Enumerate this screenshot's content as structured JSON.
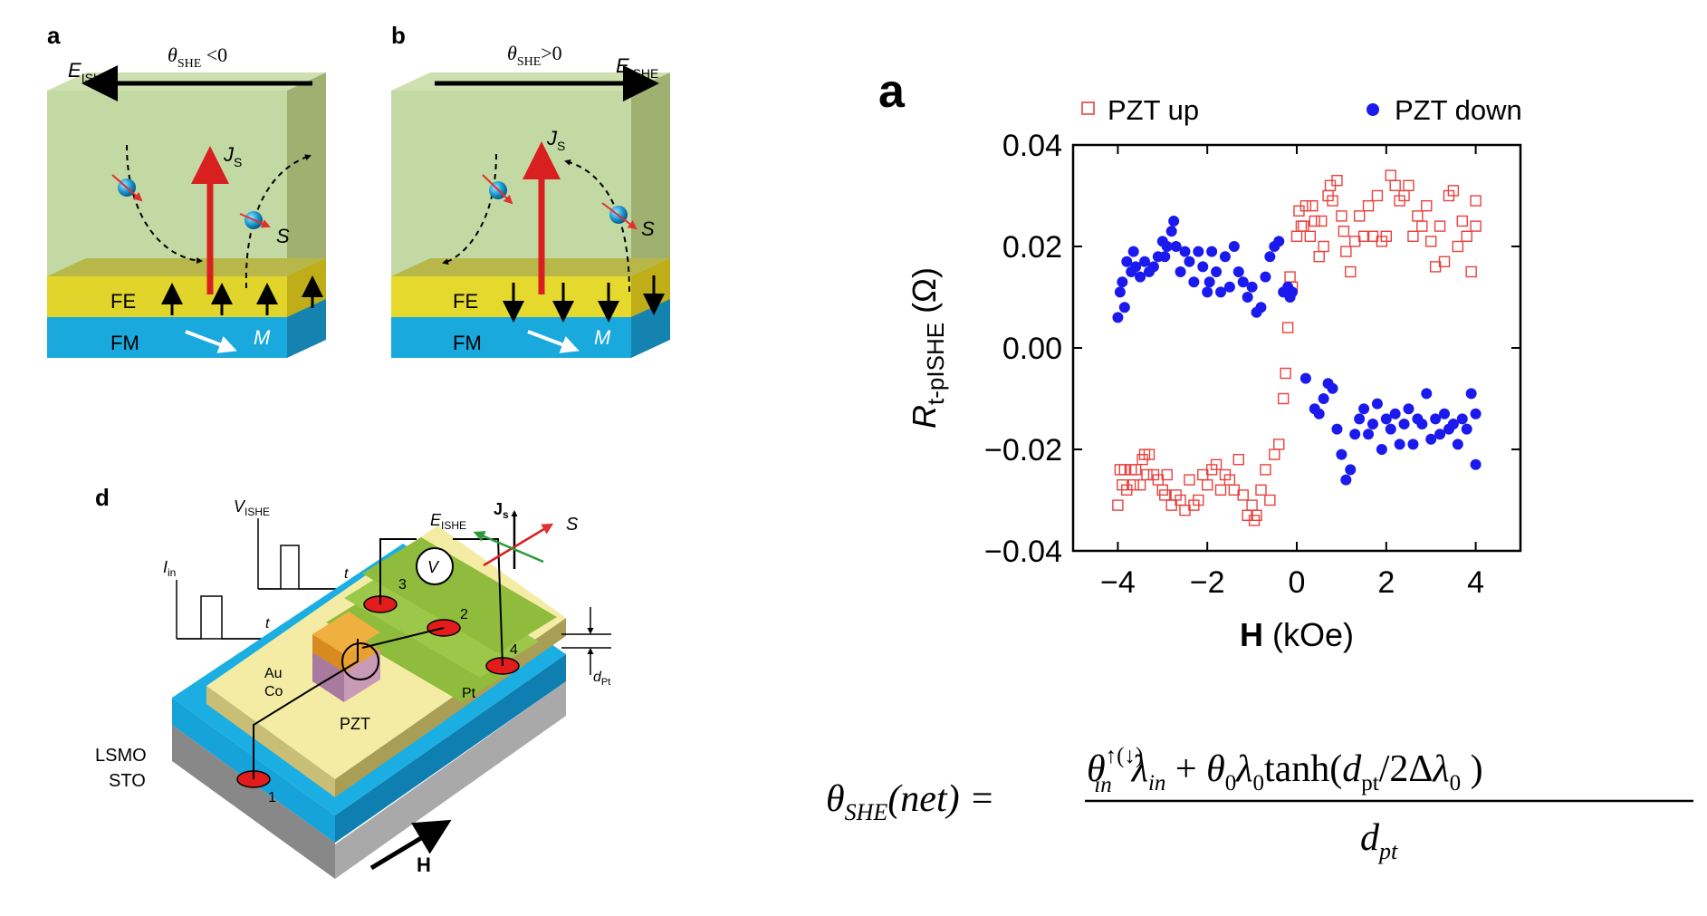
{
  "panels": {
    "a": {
      "label": "a",
      "theta": "θ",
      "theta_sub": "SHE",
      "theta_rel": " <0",
      "e_field": "E",
      "e_sub": "ISHE",
      "js": "J",
      "js_sub": "S",
      "s_label": "S",
      "fe": "FE",
      "fm": "FM",
      "m_label": "M"
    },
    "b": {
      "label": "b",
      "theta": "θ",
      "theta_sub": "SHE",
      "theta_rel": ">0",
      "e_field": "E",
      "e_sub": "ISHE",
      "js": "J",
      "js_sub": "S",
      "s_label": "S",
      "fe": "FE",
      "fm": "FM",
      "m_label": "M"
    },
    "d": {
      "label": "d",
      "v_ishe": "V",
      "v_ishe_sub": "ISHE",
      "i_in": "I",
      "i_in_sub": "in",
      "t1": "t",
      "t2": "t",
      "e_ishe": "E",
      "e_ishe_sub": "ISHE",
      "js": "J",
      "js_sub": "s",
      "s_label": "S",
      "voltmeter": "V",
      "contacts": [
        "1",
        "2",
        "3",
        "4"
      ],
      "au": "Au",
      "co": "Co",
      "pt": "Pt",
      "pzt": "PZT",
      "lsmo": "LSMO",
      "sto": "STO",
      "h_label": "H",
      "d_pt": "d",
      "d_pt_sub": "Pt"
    }
  },
  "chart_data": {
    "type": "scatter",
    "panel_label": "a",
    "xlabel_bold": "H",
    "xlabel_unit": " (kOe)",
    "ylabel_main": "R",
    "ylabel_sub": "t-pISHE",
    "ylabel_unit": " (Ω)",
    "xlim": [
      -5,
      5
    ],
    "ylim": [
      -0.04,
      0.04
    ],
    "x_ticks": [
      -4,
      -2,
      0,
      2,
      4
    ],
    "x_tick_labels": [
      "−4",
      "−2",
      "0",
      "2",
      "4"
    ],
    "y_ticks": [
      0.04,
      0.02,
      0.0,
      -0.02,
      -0.04
    ],
    "y_tick_labels": [
      "0.04",
      "0.02",
      "0.00",
      "−0.02",
      "−0.04"
    ],
    "legend": [
      {
        "name": "PZT up",
        "marker": "open-square",
        "color": "#e8413c"
      },
      {
        "name": "PZT down",
        "marker": "filled-circle",
        "color": "#1a1aee"
      }
    ],
    "series": [
      {
        "name": "PZT up",
        "points": [
          [
            -4.0,
            -0.031
          ],
          [
            -3.95,
            -0.024
          ],
          [
            -3.9,
            -0.027
          ],
          [
            -3.85,
            -0.024
          ],
          [
            -3.8,
            -0.028
          ],
          [
            -3.7,
            -0.024
          ],
          [
            -3.65,
            -0.027
          ],
          [
            -3.6,
            -0.024
          ],
          [
            -3.5,
            -0.027
          ],
          [
            -3.45,
            -0.022
          ],
          [
            -3.4,
            -0.021
          ],
          [
            -3.35,
            -0.025
          ],
          [
            -3.3,
            -0.021
          ],
          [
            -3.2,
            -0.025
          ],
          [
            -3.1,
            -0.026
          ],
          [
            -3.0,
            -0.028
          ],
          [
            -2.95,
            -0.029
          ],
          [
            -2.9,
            -0.025
          ],
          [
            -2.8,
            -0.031
          ],
          [
            -2.7,
            -0.029
          ],
          [
            -2.6,
            -0.03
          ],
          [
            -2.5,
            -0.032
          ],
          [
            -2.4,
            -0.026
          ],
          [
            -2.3,
            -0.031
          ],
          [
            -2.2,
            -0.03
          ],
          [
            -2.1,
            -0.025
          ],
          [
            -2.0,
            -0.027
          ],
          [
            -1.9,
            -0.024
          ],
          [
            -1.8,
            -0.023
          ],
          [
            -1.7,
            -0.028
          ],
          [
            -1.6,
            -0.025
          ],
          [
            -1.5,
            -0.026
          ],
          [
            -1.4,
            -0.028
          ],
          [
            -1.3,
            -0.022
          ],
          [
            -1.2,
            -0.029
          ],
          [
            -1.1,
            -0.033
          ],
          [
            -1.0,
            -0.031
          ],
          [
            -0.95,
            -0.034
          ],
          [
            -0.9,
            -0.033
          ],
          [
            -0.8,
            -0.028
          ],
          [
            -0.7,
            -0.024
          ],
          [
            -0.6,
            -0.03
          ],
          [
            -0.5,
            -0.021
          ],
          [
            -0.4,
            -0.019
          ],
          [
            -0.3,
            -0.01
          ],
          [
            -0.25,
            -0.005
          ],
          [
            -0.2,
            0.004
          ],
          [
            -0.15,
            0.014
          ],
          [
            -0.1,
            0.012
          ],
          [
            0.0,
            0.022
          ],
          [
            0.05,
            0.027
          ],
          [
            0.1,
            0.024
          ],
          [
            0.15,
            0.024
          ],
          [
            0.2,
            0.028
          ],
          [
            0.3,
            0.022
          ],
          [
            0.35,
            0.028
          ],
          [
            0.4,
            0.025
          ],
          [
            0.5,
            0.018
          ],
          [
            0.55,
            0.025
          ],
          [
            0.6,
            0.02
          ],
          [
            0.7,
            0.03
          ],
          [
            0.75,
            0.032
          ],
          [
            0.8,
            0.029
          ],
          [
            0.9,
            0.033
          ],
          [
            1.0,
            0.026
          ],
          [
            1.05,
            0.023
          ],
          [
            1.1,
            0.019
          ],
          [
            1.2,
            0.015
          ],
          [
            1.3,
            0.021
          ],
          [
            1.4,
            0.026
          ],
          [
            1.5,
            0.022
          ],
          [
            1.6,
            0.028
          ],
          [
            1.7,
            0.022
          ],
          [
            1.8,
            0.03
          ],
          [
            1.9,
            0.021
          ],
          [
            2.0,
            0.022
          ],
          [
            2.1,
            0.034
          ],
          [
            2.2,
            0.032
          ],
          [
            2.3,
            0.029
          ],
          [
            2.4,
            0.03
          ],
          [
            2.5,
            0.032
          ],
          [
            2.6,
            0.022
          ],
          [
            2.7,
            0.026
          ],
          [
            2.8,
            0.024
          ],
          [
            2.9,
            0.028
          ],
          [
            3.0,
            0.021
          ],
          [
            3.1,
            0.016
          ],
          [
            3.2,
            0.024
          ],
          [
            3.3,
            0.017
          ],
          [
            3.4,
            0.03
          ],
          [
            3.5,
            0.031
          ],
          [
            3.6,
            0.02
          ],
          [
            3.7,
            0.025
          ],
          [
            3.8,
            0.022
          ],
          [
            3.9,
            0.015
          ],
          [
            4.0,
            0.024
          ],
          [
            4.0,
            0.029
          ]
        ]
      },
      {
        "name": "PZT down",
        "points": [
          [
            -4.0,
            0.006
          ],
          [
            -3.95,
            0.011
          ],
          [
            -3.9,
            0.013
          ],
          [
            -3.85,
            0.008
          ],
          [
            -3.8,
            0.017
          ],
          [
            -3.7,
            0.015
          ],
          [
            -3.65,
            0.019
          ],
          [
            -3.6,
            0.016
          ],
          [
            -3.5,
            0.014
          ],
          [
            -3.4,
            0.017
          ],
          [
            -3.3,
            0.015
          ],
          [
            -3.2,
            0.016
          ],
          [
            -3.1,
            0.018
          ],
          [
            -3.0,
            0.021
          ],
          [
            -2.95,
            0.018
          ],
          [
            -2.9,
            0.02
          ],
          [
            -2.8,
            0.023
          ],
          [
            -2.75,
            0.025
          ],
          [
            -2.7,
            0.02
          ],
          [
            -2.6,
            0.015
          ],
          [
            -2.5,
            0.019
          ],
          [
            -2.4,
            0.017
          ],
          [
            -2.3,
            0.013
          ],
          [
            -2.2,
            0.019
          ],
          [
            -2.1,
            0.016
          ],
          [
            -2.0,
            0.011
          ],
          [
            -1.95,
            0.013
          ],
          [
            -1.9,
            0.019
          ],
          [
            -1.8,
            0.015
          ],
          [
            -1.7,
            0.011
          ],
          [
            -1.6,
            0.018
          ],
          [
            -1.5,
            0.012
          ],
          [
            -1.4,
            0.02
          ],
          [
            -1.3,
            0.015
          ],
          [
            -1.2,
            0.013
          ],
          [
            -1.1,
            0.01
          ],
          [
            -1.0,
            0.012
          ],
          [
            -0.9,
            0.007
          ],
          [
            -0.8,
            0.008
          ],
          [
            -0.7,
            0.014
          ],
          [
            -0.6,
            0.018
          ],
          [
            -0.5,
            0.02
          ],
          [
            -0.4,
            0.021
          ],
          [
            -0.3,
            0.011
          ],
          [
            -0.2,
            0.012
          ],
          [
            -0.15,
            0.01
          ],
          [
            -0.1,
            0.011
          ],
          [
            0.2,
            -0.006
          ],
          [
            0.4,
            -0.012
          ],
          [
            0.5,
            -0.013
          ],
          [
            0.6,
            -0.01
          ],
          [
            0.7,
            -0.007
          ],
          [
            0.8,
            -0.008
          ],
          [
            0.9,
            -0.016
          ],
          [
            1.0,
            -0.021
          ],
          [
            1.1,
            -0.026
          ],
          [
            1.2,
            -0.024
          ],
          [
            1.3,
            -0.017
          ],
          [
            1.4,
            -0.014
          ],
          [
            1.5,
            -0.012
          ],
          [
            1.6,
            -0.017
          ],
          [
            1.7,
            -0.015
          ],
          [
            1.8,
            -0.011
          ],
          [
            1.9,
            -0.02
          ],
          [
            2.0,
            -0.014
          ],
          [
            2.1,
            -0.016
          ],
          [
            2.2,
            -0.013
          ],
          [
            2.3,
            -0.019
          ],
          [
            2.4,
            -0.015
          ],
          [
            2.5,
            -0.012
          ],
          [
            2.6,
            -0.019
          ],
          [
            2.7,
            -0.014
          ],
          [
            2.8,
            -0.015
          ],
          [
            2.9,
            -0.009
          ],
          [
            3.0,
            -0.018
          ],
          [
            3.1,
            -0.014
          ],
          [
            3.2,
            -0.017
          ],
          [
            3.3,
            -0.013
          ],
          [
            3.4,
            -0.016
          ],
          [
            3.5,
            -0.015
          ],
          [
            3.6,
            -0.019
          ],
          [
            3.7,
            -0.014
          ],
          [
            3.8,
            -0.016
          ],
          [
            3.9,
            -0.009
          ],
          [
            4.0,
            -0.013
          ],
          [
            4.0,
            -0.023
          ]
        ]
      }
    ]
  },
  "formula": {
    "lhs_theta": "θ",
    "lhs_sub": "SHE",
    "lhs_arg": "(net) =",
    "num_theta": "θ",
    "num_sup": "↑(↓)",
    "num_sub": "in",
    "num_lambda": "λ",
    "num_lambda_sub": "in",
    "plus": " + ",
    "theta0": "θ",
    "zero_sub": "0",
    "lambda0": "λ",
    "tanh": "tanh(",
    "d": "d",
    "d_sub": "pt",
    "slash": "/2Δ",
    "lambda_end": "λ",
    "lambda_end_sub": "0",
    "close": " )",
    "den_d": "d",
    "den_sub": "pt"
  }
}
